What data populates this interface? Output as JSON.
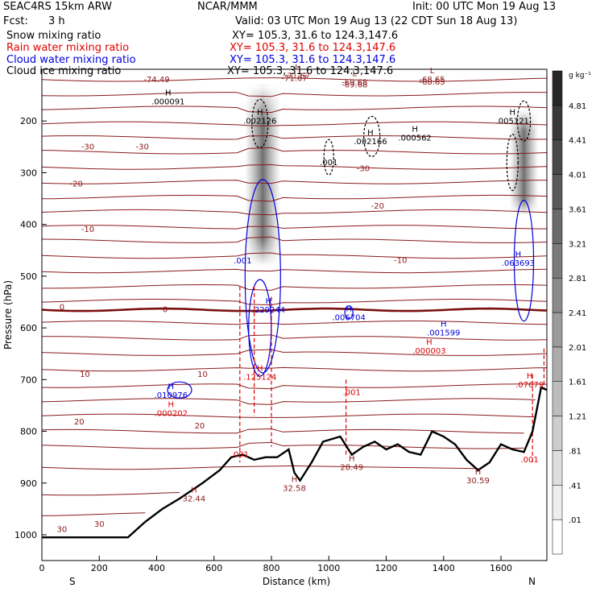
{
  "header": {
    "model": "SEAC4RS 15km ARW",
    "org": "NCAR/MMM",
    "init": "Init: 00 UTC Mon 19 Aug 13",
    "fcst_label": "Fcst:",
    "fcst_value": "3 h",
    "valid": "Valid: 03 UTC Mon 19 Aug 13 (22 CDT Sun 18 Aug 13)",
    "fields": [
      {
        "name": "Snow mixing ratio",
        "color": "#000000",
        "xy": "XY= 105.3, 31.6 to 124.3,147.6"
      },
      {
        "name": "Rain water mixing ratio",
        "color": "#e00000",
        "xy": "XY= 105.3, 31.6 to 124.3,147.6"
      },
      {
        "name": "Cloud water mixing ratio",
        "color": "#0000dd",
        "xy": "XY= 105.3, 31.6 to 124.3,147.6"
      },
      {
        "name": "Cloud ice mixing ratio",
        "color": "#000000",
        "xy": "XY= 105.3, 31.6 to 124.3,147.6"
      }
    ]
  },
  "chart_data": {
    "type": "contour cross-section",
    "xlabel": "Distance (km)",
    "ylabel": "Pressure (hPa)",
    "xlim": [
      0,
      1760
    ],
    "ylim": [
      1000,
      100
    ],
    "xticks": [
      0,
      200,
      400,
      600,
      800,
      1000,
      1200,
      1400,
      1600
    ],
    "yticks": [
      200,
      300,
      400,
      500,
      600,
      700,
      800,
      900,
      1000
    ],
    "end_labels": {
      "left": "S",
      "right": "N"
    },
    "colorbar": {
      "unit": "g kg⁻¹",
      "levels": [
        ".01",
        ".41",
        ".81",
        "1.21",
        "1.61",
        "2.01",
        "2.41",
        "2.81",
        "3.21",
        "3.61",
        "4.01",
        "4.41",
        "4.81"
      ]
    },
    "temperature_isotherms": {
      "color": "#8b1a1a",
      "labels": [
        "-74.49",
        "-71.67",
        "-69.68",
        "-68.65",
        "-30",
        "-30",
        "-30",
        "-20",
        "-20",
        "-10",
        "-10",
        "0",
        "0",
        "10",
        "10",
        "20",
        "20",
        "30",
        "30"
      ]
    },
    "annotations": [
      {
        "text": "H",
        "value": ".000091",
        "x": 440,
        "p": 168,
        "color": "#000000"
      },
      {
        "text": "H",
        "value": ".002126",
        "x": 760,
        "p": 205,
        "color": "#000000"
      },
      {
        "text": "H",
        "value": ".002166",
        "x": 1145,
        "p": 245,
        "color": "#000000"
      },
      {
        "text": "H",
        "value": ".000562",
        "x": 1300,
        "p": 238,
        "color": "#000000"
      },
      {
        "text": "H",
        "value": ".005121",
        "x": 1640,
        "p": 205,
        "color": "#000000"
      },
      {
        "text": "",
        "value": ".001",
        "x": 1000,
        "p": 285,
        "color": "#000000"
      },
      {
        "text": "",
        "value": ".001",
        "x": 700,
        "p": 475,
        "color": "#0000dd"
      },
      {
        "text": "H",
        "value": ".063693",
        "x": 1660,
        "p": 480,
        "color": "#0000dd"
      },
      {
        "text": "H",
        "value": ".229244",
        "x": 790,
        "p": 570,
        "color": "#0000dd"
      },
      {
        "text": "H",
        "value": ".006704",
        "x": 1070,
        "p": 585,
        "color": "#0000dd"
      },
      {
        "text": "H",
        "value": ".001599",
        "x": 1400,
        "p": 615,
        "color": "#0000dd"
      },
      {
        "text": "H",
        "value": ".010976",
        "x": 450,
        "p": 735,
        "color": "#0000dd"
      },
      {
        "text": "H",
        "value": ".000003",
        "x": 1350,
        "p": 650,
        "color": "#dd0000"
      },
      {
        "text": "H",
        "value": ".125124",
        "x": 760,
        "p": 700,
        "color": "#dd0000"
      },
      {
        "text": "H",
        "value": ".07679",
        "x": 1700,
        "p": 715,
        "color": "#dd0000"
      },
      {
        "text": "H",
        "value": ".000202",
        "x": 450,
        "p": 770,
        "color": "#dd0000"
      },
      {
        "text": "",
        "value": ".001",
        "x": 1080,
        "p": 730,
        "color": "#dd0000"
      },
      {
        "text": "",
        "value": ".001",
        "x": 690,
        "p": 850,
        "color": "#dd0000"
      },
      {
        "text": "",
        "value": ".001",
        "x": 1700,
        "p": 860,
        "color": "#dd0000"
      },
      {
        "text": "H",
        "value": "28.49",
        "x": 1080,
        "p": 875,
        "color": "#8b1a1a"
      },
      {
        "text": "H",
        "value": "30.59",
        "x": 1520,
        "p": 900,
        "color": "#8b1a1a"
      },
      {
        "text": "H",
        "value": "32.58",
        "x": 880,
        "p": 915,
        "color": "#8b1a1a"
      },
      {
        "text": "H",
        "value": "32.44",
        "x": 530,
        "p": 935,
        "color": "#8b1a1a"
      },
      {
        "text": "L",
        "value": "-71.67",
        "x": 890,
        "p": 118,
        "color": "#8b1a1a"
      },
      {
        "text": "L",
        "value": "-69.68",
        "x": 1090,
        "p": 130,
        "color": "#8b1a1a"
      },
      {
        "text": "L",
        "value": "-68.65",
        "x": 1360,
        "p": 125,
        "color": "#8b1a1a"
      }
    ]
  }
}
